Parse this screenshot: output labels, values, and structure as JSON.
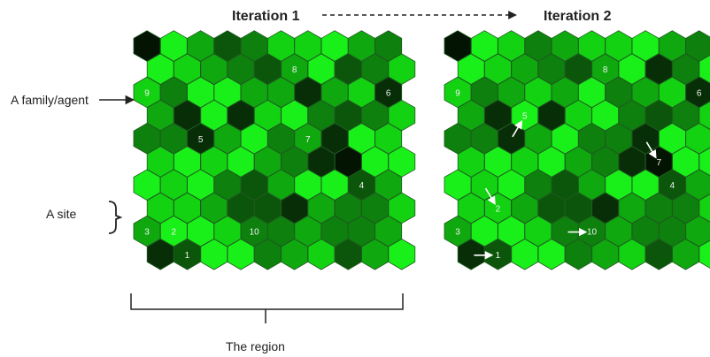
{
  "labels": {
    "iteration1": "Iteration 1",
    "iteration2": "Iteration 2",
    "family_agent": "A family/agent",
    "site": "A site",
    "region": "The region"
  },
  "colors": {
    "level0": "#19f019",
    "level1": "#12d212",
    "level2": "#0fa80f",
    "level3": "#0d800d",
    "level4": "#0b560b",
    "level5": "#082e08",
    "level6": "#031403",
    "hex_stroke": "#1f5a1f",
    "arrow_white": "#ffffff",
    "text_dark": "#222222"
  },
  "grids": {
    "iteration1": {
      "rows": [
        [
          6,
          0,
          2,
          4,
          3,
          1,
          1,
          0,
          2,
          3
        ],
        [
          0,
          1,
          2,
          3,
          4,
          2,
          0,
          4,
          3,
          1
        ],
        [
          1,
          3,
          0,
          0,
          2,
          2,
          5,
          2,
          1,
          5
        ],
        [
          2,
          5,
          0,
          5,
          1,
          0,
          3,
          4,
          3,
          1
        ],
        [
          3,
          3,
          5,
          2,
          0,
          3,
          2,
          5,
          0,
          1
        ],
        [
          1,
          0,
          1,
          0,
          2,
          3,
          5,
          6,
          0,
          0
        ],
        [
          0,
          1,
          0,
          3,
          4,
          2,
          0,
          0,
          4,
          2
        ],
        [
          1,
          1,
          2,
          4,
          4,
          5,
          2,
          3,
          3,
          1
        ],
        [
          2,
          0,
          0,
          1,
          3,
          3,
          2,
          3,
          3,
          2
        ],
        [
          5,
          4,
          0,
          0,
          3,
          2,
          1,
          4,
          2,
          0
        ]
      ],
      "agents": [
        {
          "id": "1",
          "row": 9,
          "col": 1
        },
        {
          "id": "2",
          "row": 8,
          "col": 1
        },
        {
          "id": "3",
          "row": 8,
          "col": 0
        },
        {
          "id": "4",
          "row": 6,
          "col": 8
        },
        {
          "id": "5",
          "row": 4,
          "col": 2
        },
        {
          "id": "6",
          "row": 2,
          "col": 9
        },
        {
          "id": "7",
          "row": 4,
          "col": 6
        },
        {
          "id": "8",
          "row": 1,
          "col": 5
        },
        {
          "id": "9",
          "row": 2,
          "col": 0
        },
        {
          "id": "10",
          "row": 8,
          "col": 4
        }
      ]
    },
    "iteration2": {
      "rows": [
        [
          6,
          0,
          1,
          3,
          2,
          1,
          1,
          0,
          2,
          3
        ],
        [
          0,
          1,
          2,
          3,
          4,
          2,
          0,
          5,
          3,
          0
        ],
        [
          1,
          3,
          2,
          1,
          2,
          0,
          3,
          2,
          1,
          5
        ],
        [
          2,
          5,
          0,
          5,
          1,
          0,
          3,
          4,
          3,
          1
        ],
        [
          3,
          3,
          5,
          2,
          0,
          3,
          3,
          5,
          0,
          1
        ],
        [
          1,
          0,
          1,
          0,
          2,
          3,
          5,
          6,
          0,
          0
        ],
        [
          0,
          1,
          0,
          3,
          4,
          2,
          0,
          0,
          4,
          2
        ],
        [
          1,
          1,
          2,
          4,
          4,
          5,
          2,
          3,
          3,
          1
        ],
        [
          2,
          0,
          0,
          1,
          3,
          3,
          2,
          3,
          3,
          2
        ],
        [
          5,
          4,
          0,
          0,
          3,
          2,
          1,
          4,
          2,
          0
        ]
      ],
      "agents": [
        {
          "id": "1",
          "row": 9,
          "col": 1
        },
        {
          "id": "2",
          "row": 7,
          "col": 1
        },
        {
          "id": "3",
          "row": 8,
          "col": 0
        },
        {
          "id": "4",
          "row": 6,
          "col": 8
        },
        {
          "id": "5",
          "row": 3,
          "col": 2
        },
        {
          "id": "6",
          "row": 2,
          "col": 9
        },
        {
          "id": "7",
          "row": 5,
          "col": 7
        },
        {
          "id": "8",
          "row": 1,
          "col": 5
        },
        {
          "id": "9",
          "row": 2,
          "col": 0
        },
        {
          "id": "10",
          "row": 8,
          "col": 5
        }
      ],
      "moves": [
        {
          "agent": "1",
          "dir": "right"
        },
        {
          "agent": "2",
          "dir": "down-right"
        },
        {
          "agent": "5",
          "dir": "up-right"
        },
        {
          "agent": "7",
          "dir": "down-right"
        },
        {
          "agent": "10",
          "dir": "right"
        }
      ]
    }
  }
}
